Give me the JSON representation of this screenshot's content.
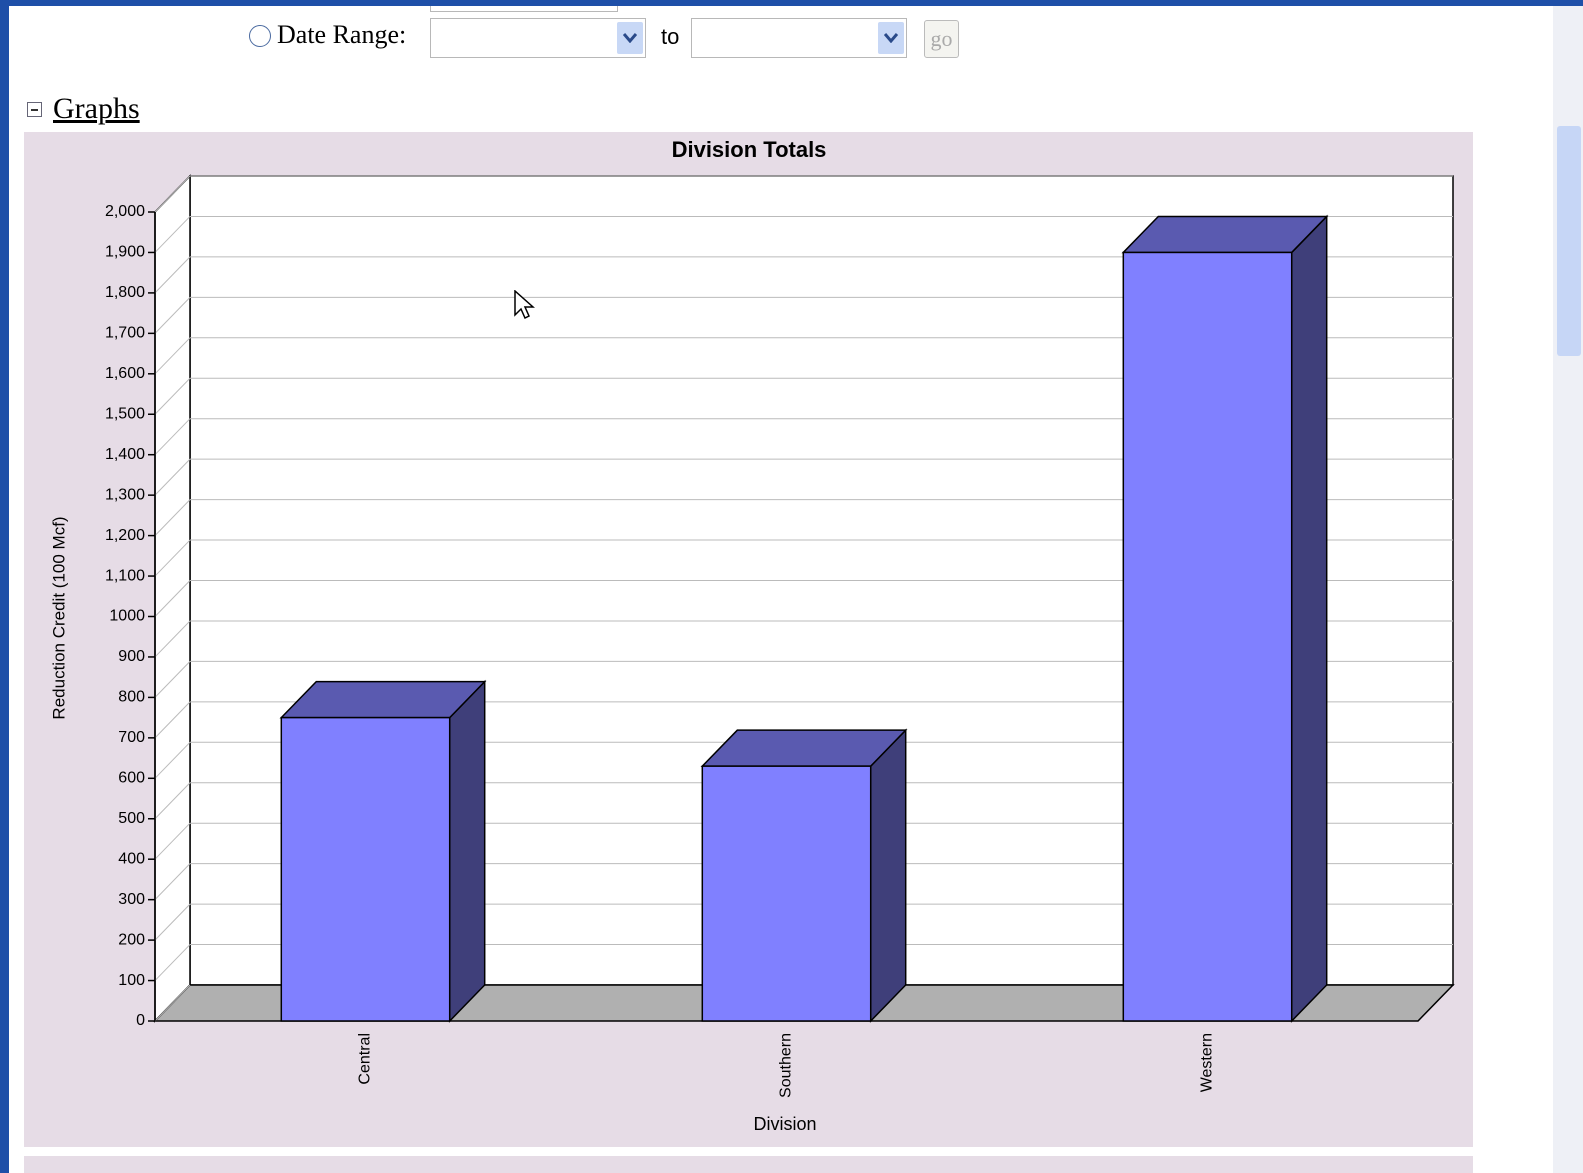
{
  "form": {
    "date_range_label": "Date Range:",
    "to_label": "to",
    "go_button": "go"
  },
  "section": {
    "title": "Graphs"
  },
  "chart_data": {
    "type": "bar3d",
    "title": "Division Totals",
    "x_label": "Division",
    "y_label": "Reduction Credit (100 Mcf)",
    "categories": [
      "Central",
      "Southern",
      "Western"
    ],
    "values": [
      750,
      630,
      1900
    ],
    "colors": {
      "front": "#8080ff",
      "top": "#5a5ab0",
      "side": "#3f3f7a",
      "floor": "#b0b0b0",
      "background": "#e6dce6"
    },
    "ylim": [
      0,
      2000
    ],
    "yticks": [
      0,
      100,
      200,
      300,
      400,
      500,
      600,
      700,
      800,
      900,
      1000,
      {
        "value": 1100,
        "label": "1,100"
      },
      {
        "value": 1200,
        "label": "1,200"
      },
      {
        "value": 1300,
        "label": "1,300"
      },
      {
        "value": 1400,
        "label": "1,400"
      },
      {
        "value": 1500,
        "label": "1,500"
      },
      {
        "value": 1600,
        "label": "1,600"
      },
      {
        "value": 1700,
        "label": "1,700"
      },
      {
        "value": 1800,
        "label": "1,800"
      },
      {
        "value": 1900,
        "label": "1,900"
      },
      {
        "value": 2000,
        "label": "2,000"
      }
    ],
    "grid": true
  }
}
